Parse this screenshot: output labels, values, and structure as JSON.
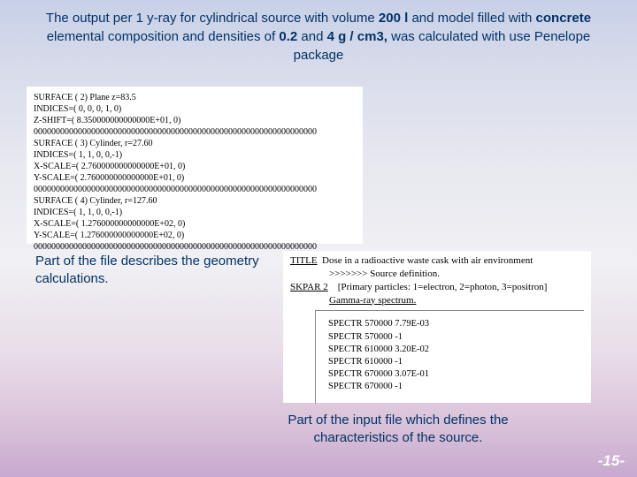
{
  "title_html": "The output per 1 y-ray for cylindrical source with volume <b>200 l</b> and model filled with <b>concrete</b> elemental composition and densities of <b>0.2</b> and <b>4 g / cm3,</b> was calculated  with use Penelope package",
  "geom_lines": [
    "SURFACE (  2)  Plane z=83.5",
    "INDICES=( 0, 0, 0, 1, 0)",
    "Z-SHIFT=( 8.350000000000000E+01,  0)",
    "0000000000000000000000000000000000000000000000000000000000000000",
    "SURFACE (  3)  Cylinder, r=27.60",
    "INDICES=( 1, 1, 0, 0,-1)",
    "X-SCALE=( 2.760000000000000E+01,  0)",
    "Y-SCALE=( 2.760000000000000E+01,  0)",
    "0000000000000000000000000000000000000000000000000000000000000000",
    "SURFACE (  4)  Cylinder, r=127.60",
    "INDICES=( 1, 1, 0, 0,-1)",
    "X-SCALE=( 1.276000000000000E+02,  0)",
    "Y-SCALE=( 1.276000000000000E+02,  0)",
    "0000000000000000000000000000000000000000000000000000000000000000"
  ],
  "geom_caption": "Part of the file describes the geometry calculations.",
  "input_header": {
    "title_line": "TITLE  Dose in a radioactive waste cask with air environment",
    "source_def": ">>>>>>> Source definition.",
    "skpar_label": "SKPAR  2",
    "skpar_desc": "[Primary particles: 1=electron, 2=photon, 3=positron]",
    "gamma": "Gamma-ray spectrum."
  },
  "input_lines": [
    "SPECTR 570000  7.79E-03",
    "SPECTR 570000  -1",
    "SPECTR 610000  3.20E-02",
    "SPECTR 610000  -1",
    "SPECTR 670000  3.07E-01",
    "SPECTR 670000  -1"
  ],
  "input_caption": "Part of the input file which defines the characteristics of the source.",
  "pagenum": "-15-"
}
